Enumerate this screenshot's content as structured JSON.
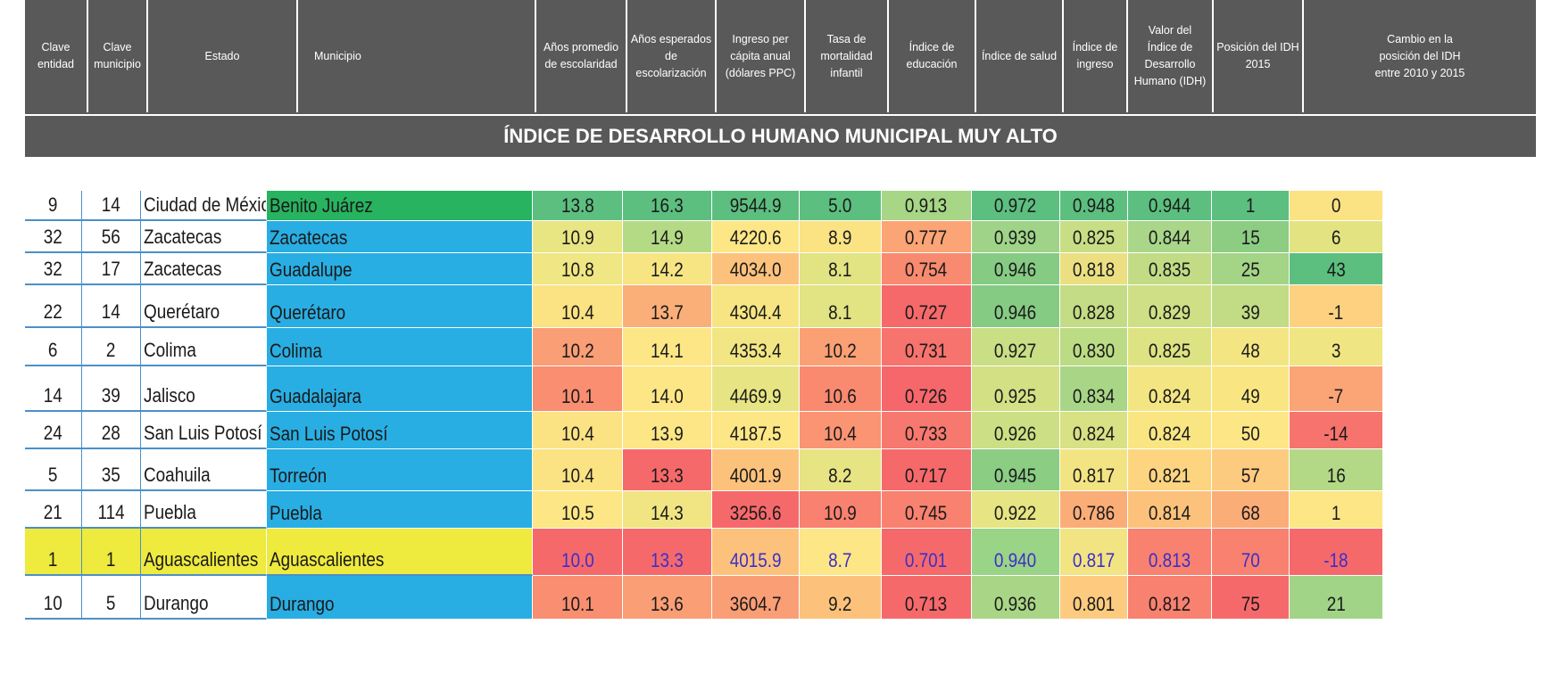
{
  "header": {
    "columns": [
      "Clave\nentidad",
      "Clave\nmunicipio",
      "Estado",
      "Municipio",
      "Años promedio\nde escolaridad",
      "Años esperados\nde escolarización",
      "Ingreso per\ncápita anual\n(dólares PPC)",
      "Tasa de\nmortalidad\ninfantil",
      "Índice de\neducación",
      "Índice de salud",
      "Índice de\ningreso",
      "Valor del\nÍndice de\nDesarrollo\nHumano (IDH)",
      "Posición del IDH\n2015",
      "Cambio en la\nposición del IDH\nentre 2010 y 2015"
    ],
    "section_title": "ÍNDICE DE DESARROLLO HUMANO MUNICIPAL MUY ALTO"
  },
  "colors": {
    "header_bg": "#595959",
    "municipio_default_bg": "#29aee3",
    "benito_juarez_bg": "#27b35f",
    "highlight_row_bg": "#eeea3e",
    "highlight_text": "#3b2fc7"
  },
  "rows": [
    {
      "clave_entidad": "9",
      "clave_municipio": "14",
      "estado": "Ciudad de México",
      "municipio": "Benito Juárez",
      "escolaridad": "13.8",
      "escolarizacion": "16.3",
      "ingreso_pc": "9544.9",
      "mortalidad": "5.0",
      "ind_educacion": "0.913",
      "ind_salud": "0.972",
      "ind_ingreso": "0.948",
      "idh": "0.944",
      "posicion": "1",
      "cambio": "0",
      "colors": [
        "#5cbf7f",
        "#5cbf7f",
        "#5cbf7f",
        "#5cbf7f",
        "#a6d686",
        "#5cbf7f",
        "#5cbf7f",
        "#5cbf7f",
        "#5cbf7f",
        "#fbe283"
      ]
    },
    {
      "clave_entidad": "32",
      "clave_municipio": "56",
      "estado": "Zacatecas",
      "municipio": "Zacatecas",
      "escolaridad": "10.9",
      "escolarizacion": "14.9",
      "ingreso_pc": "4220.6",
      "mortalidad": "8.9",
      "ind_educacion": "0.777",
      "ind_salud": "0.939",
      "ind_ingreso": "0.825",
      "idh": "0.844",
      "posicion": "15",
      "cambio": "6",
      "colors": [
        "#e8e583",
        "#b5da86",
        "#fde685",
        "#fbe283",
        "#fba476",
        "#9fd488",
        "#c8de85",
        "#a9d689",
        "#8ccd83",
        "#e3e382"
      ]
    },
    {
      "clave_entidad": "32",
      "clave_municipio": "17",
      "estado": "Zacatecas",
      "municipio": "Guadalupe",
      "escolaridad": "10.8",
      "escolarizacion": "14.2",
      "ingreso_pc": "4034.0",
      "mortalidad": "8.1",
      "ind_educacion": "0.754",
      "ind_salud": "0.946",
      "ind_ingreso": "0.818",
      "idh": "0.835",
      "posicion": "25",
      "cambio": "43",
      "colors": [
        "#f0e683",
        "#f7e583",
        "#fcc27c",
        "#e2e382",
        "#f88a6f",
        "#86cb83",
        "#ecdf82",
        "#c1dc85",
        "#a4d486",
        "#5cbf7f"
      ]
    },
    {
      "clave_entidad": "22",
      "clave_municipio": "14",
      "estado": "Querétaro",
      "municipio": "Querétaro",
      "escolaridad": "10.4",
      "escolarizacion": "13.7",
      "ingreso_pc": "4304.4",
      "mortalidad": "8.1",
      "ind_educacion": "0.727",
      "ind_salud": "0.946",
      "ind_ingreso": "0.828",
      "idh": "0.829",
      "posicion": "39",
      "cambio": "-1",
      "colors": [
        "#fbe283",
        "#fbaf78",
        "#f7e583",
        "#e2e382",
        "#f6696b",
        "#86cb83",
        "#c3dc85",
        "#cedf85",
        "#c1dc85",
        "#fdd180"
      ]
    },
    {
      "clave_entidad": "6",
      "clave_municipio": "2",
      "estado": "Colima",
      "municipio": "Colima",
      "escolaridad": "10.2",
      "escolarizacion": "14.1",
      "ingreso_pc": "4353.4",
      "mortalidad": "10.2",
      "ind_educacion": "0.731",
      "ind_salud": "0.927",
      "ind_ingreso": "0.830",
      "idh": "0.825",
      "posicion": "48",
      "cambio": "3",
      "colors": [
        "#fa9e75",
        "#fde685",
        "#f2e583",
        "#fba075",
        "#f7736d",
        "#c9de85",
        "#bcdb85",
        "#dde282",
        "#f4e583",
        "#f0e583"
      ]
    },
    {
      "clave_entidad": "14",
      "clave_municipio": "39",
      "estado": "Jalisco",
      "municipio": "Guadalajara",
      "escolaridad": "10.1",
      "escolarizacion": "14.0",
      "ingreso_pc": "4469.9",
      "mortalidad": "10.6",
      "ind_educacion": "0.726",
      "ind_salud": "0.925",
      "ind_ingreso": "0.834",
      "idh": "0.824",
      "posicion": "49",
      "cambio": "-7",
      "colors": [
        "#f98e71",
        "#fde685",
        "#e7e483",
        "#f98a70",
        "#f6676b",
        "#d3e084",
        "#a8d686",
        "#f4e583",
        "#f9e683",
        "#fba476"
      ]
    },
    {
      "clave_entidad": "24",
      "clave_municipio": "28",
      "estado": "San Luis Potosí",
      "municipio": "San Luis Potosí",
      "escolaridad": "10.4",
      "escolarizacion": "13.9",
      "ingreso_pc": "4187.5",
      "mortalidad": "10.4",
      "ind_educacion": "0.733",
      "ind_salud": "0.926",
      "ind_ingreso": "0.824",
      "idh": "0.824",
      "posicion": "50",
      "cambio": "-14",
      "colors": [
        "#fbe283",
        "#fde685",
        "#fde685",
        "#fa9472",
        "#f7786e",
        "#cddf84",
        "#d8e183",
        "#f9e683",
        "#fde685",
        "#f7736d"
      ]
    },
    {
      "clave_entidad": "5",
      "clave_municipio": "35",
      "estado": "Coahuila",
      "municipio": "Torreón",
      "escolaridad": "10.4",
      "escolarizacion": "13.3",
      "ingreso_pc": "4001.9",
      "mortalidad": "8.2",
      "ind_educacion": "0.717",
      "ind_salud": "0.945",
      "ind_ingreso": "0.817",
      "idh": "0.821",
      "posicion": "57",
      "cambio": "16",
      "colors": [
        "#fbe283",
        "#f6696b",
        "#fcc27c",
        "#e6e483",
        "#f6696b",
        "#8acd83",
        "#f3e483",
        "#fdd581",
        "#fdcb7f",
        "#b3d986"
      ]
    },
    {
      "clave_entidad": "21",
      "clave_municipio": "114",
      "estado": "Puebla",
      "municipio": "Puebla",
      "escolaridad": "10.5",
      "escolarizacion": "14.3",
      "ingreso_pc": "3256.6",
      "mortalidad": "10.9",
      "ind_educacion": "0.745",
      "ind_salud": "0.922",
      "ind_ingreso": "0.786",
      "idh": "0.814",
      "posicion": "68",
      "cambio": "1",
      "colors": [
        "#fde685",
        "#f1e583",
        "#f6696b",
        "#f8816f",
        "#f8816f",
        "#e6e483",
        "#fbad78",
        "#fcc27c",
        "#fbad78",
        "#fde685"
      ]
    },
    {
      "clave_entidad": "1",
      "clave_municipio": "1",
      "estado": "Aguascalientes",
      "municipio": "Aguascalientes",
      "escolaridad": "10.0",
      "escolarizacion": "13.3",
      "ingreso_pc": "4015.9",
      "mortalidad": "8.7",
      "ind_educacion": "0.701",
      "ind_salud": "0.940",
      "ind_ingreso": "0.817",
      "idh": "0.813",
      "posicion": "70",
      "cambio": "-18",
      "highlight": true,
      "colors": [
        "#f6696b",
        "#f6696b",
        "#fcc27c",
        "#fde685",
        "#f6696b",
        "#9ad487",
        "#f3e483",
        "#f8816f",
        "#f8816f",
        "#f6696b"
      ]
    },
    {
      "clave_entidad": "10",
      "clave_municipio": "5",
      "estado": "Durango",
      "municipio": "Durango",
      "escolaridad": "10.1",
      "escolarizacion": "13.6",
      "ingreso_pc": "3604.7",
      "mortalidad": "9.2",
      "ind_educacion": "0.713",
      "ind_salud": "0.936",
      "ind_ingreso": "0.801",
      "idh": "0.812",
      "posicion": "75",
      "cambio": "21",
      "colors": [
        "#f98e71",
        "#fa9e75",
        "#fa9e75",
        "#fcc27c",
        "#f6696b",
        "#a9d686",
        "#fdcb7f",
        "#f8816f",
        "#f6696b",
        "#a1d487"
      ]
    }
  ]
}
